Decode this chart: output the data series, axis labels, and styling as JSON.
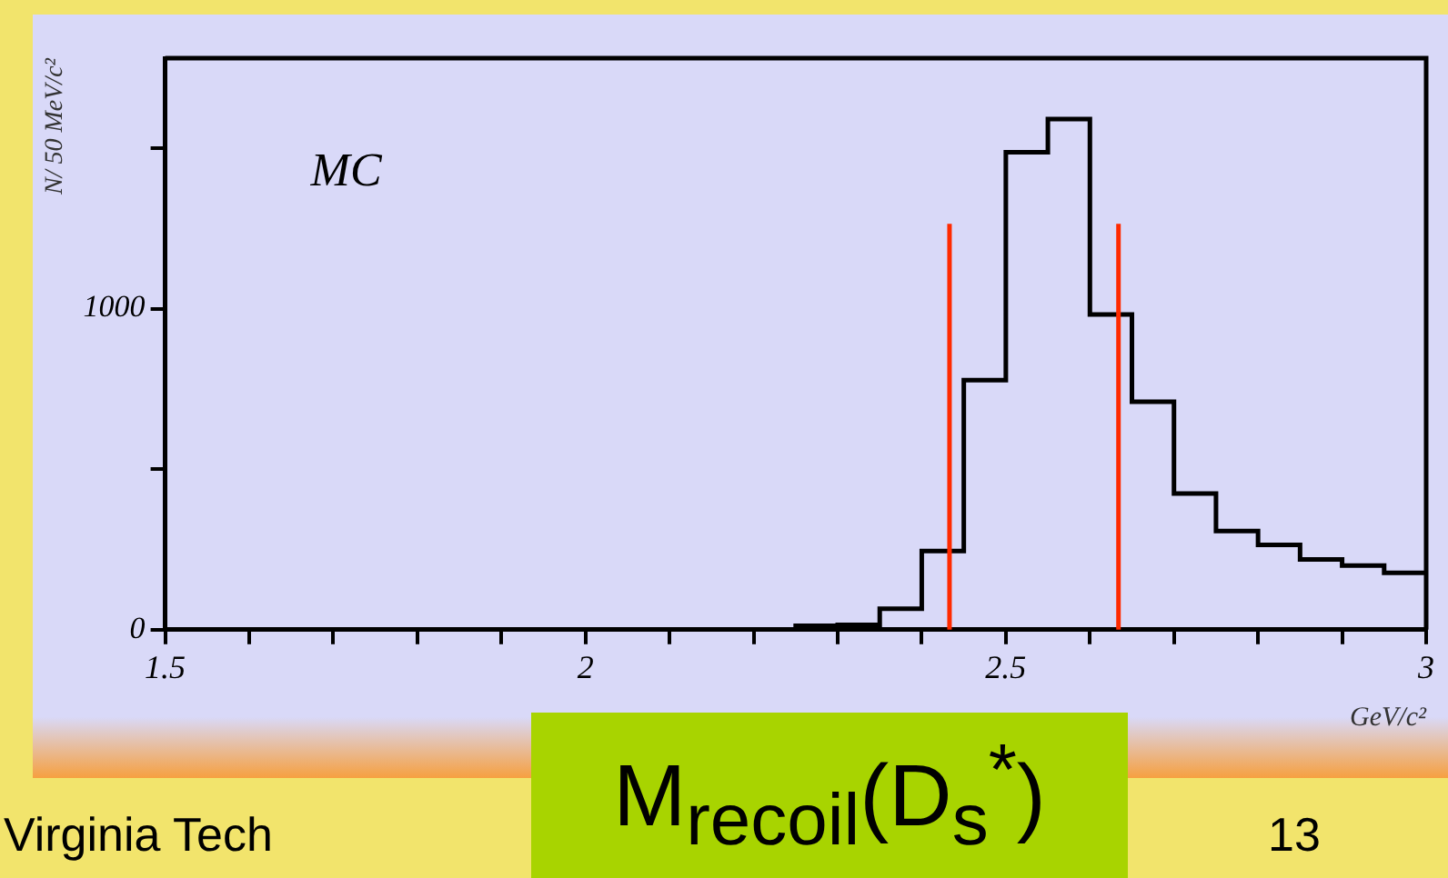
{
  "chart_data": {
    "type": "histogram",
    "title": "M$_{recoil}$(D$_{s}$$^{*}$)",
    "xlabel": "GeV/c²",
    "ylabel": "N/ 50 MeV/c²",
    "bins": [
      1.5,
      1.55,
      1.6,
      1.65,
      1.7,
      1.75,
      1.8,
      1.85,
      1.9,
      1.95,
      2.0,
      2.05,
      2.1,
      2.15,
      2.2,
      2.25,
      2.3,
      2.35,
      2.4,
      2.45,
      2.5,
      2.55,
      2.6,
      2.65,
      2.7,
      2.75,
      2.8,
      2.85,
      2.9,
      2.95,
      3.0
    ],
    "values": [
      0,
      0,
      0,
      0,
      0,
      0,
      0,
      0,
      0,
      0,
      0,
      0,
      0,
      0,
      0,
      12,
      15,
      65,
      245,
      777,
      1487,
      1590,
      982,
      710,
      424,
      307,
      264,
      219,
      200,
      177
    ],
    "color": "#000000",
    "xlim": [
      1.5,
      3
    ],
    "ylim": [
      0,
      1780
    ],
    "xticks": [
      1.5,
      {
        "value": 1.6,
        "label": null
      },
      {
        "value": 1.7,
        "label": null
      },
      {
        "value": 1.8,
        "label": null
      },
      {
        "value": 1.9,
        "label": null
      },
      2,
      {
        "value": 2.1,
        "label": null
      },
      {
        "value": 2.2,
        "label": null
      },
      {
        "value": 2.3,
        "label": null
      },
      {
        "value": 2.4,
        "label": null
      },
      2.5,
      {
        "value": 2.6,
        "label": null
      },
      {
        "value": 2.7,
        "label": null
      },
      {
        "value": 2.8,
        "label": null
      },
      {
        "value": 2.9,
        "label": null
      },
      3
    ],
    "yticks": [
      0,
      {
        "value": 500,
        "label": null
      },
      1000,
      {
        "value": 1500,
        "label": null
      }
    ],
    "ref_lines": [
      {
        "axis": "x",
        "value": 2.433,
        "color": "#ff2a00"
      },
      {
        "axis": "x",
        "value": 2.634,
        "color": "#ff2a00"
      }
    ],
    "annotations": [
      "MC",
      "Virginia Tech",
      "13"
    ],
    "grid": false,
    "legend": false
  }
}
